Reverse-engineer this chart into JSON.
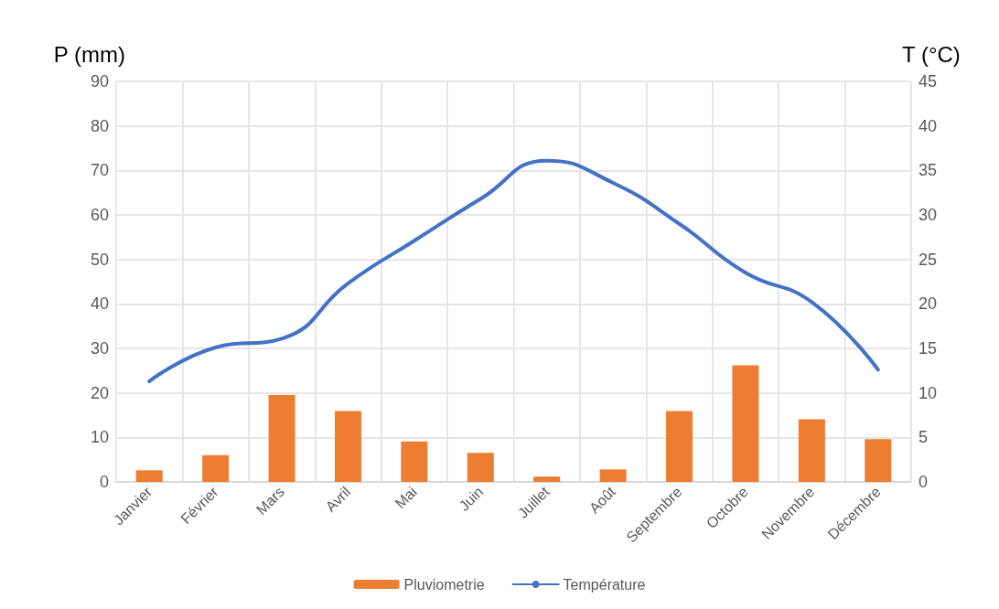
{
  "chart_data": {
    "type": "bar",
    "ylabel": "P (mm)",
    "y2label": "T (°C)",
    "categories": [
      "Janvier",
      "Février",
      "Mars",
      "Avril",
      "Mai",
      "Juin",
      "Juillet",
      "Août",
      "Septembre",
      "Octobre",
      "Novembre",
      "Décembre"
    ],
    "series": [
      {
        "name": "Pluviometrie",
        "color": "#ed7d31",
        "values": [
          2.6,
          6.0,
          19.5,
          15.9,
          9.1,
          6.5,
          1.2,
          2.8,
          15.9,
          26.2,
          14.1,
          9.6
        ]
      },
      {
        "name": "Température",
        "type": "line",
        "axis": "y2",
        "color": "#4472c4",
        "values": [
          11.3,
          15.1,
          16.1,
          22.3,
          27.1,
          31.8,
          36.1,
          33.6,
          29.0,
          23.5,
          20.2,
          12.6
        ]
      }
    ],
    "ylim": [
      0,
      90
    ],
    "yticks": [
      0,
      10,
      20,
      30,
      40,
      50,
      60,
      70,
      80,
      90
    ],
    "y2lim": [
      0,
      45
    ],
    "y2ticks": [
      0,
      5,
      10,
      15,
      20,
      25,
      30,
      35,
      40,
      45
    ],
    "grid": true,
    "legend": "bottom",
    "marker": "none",
    "line_style": "solid"
  }
}
